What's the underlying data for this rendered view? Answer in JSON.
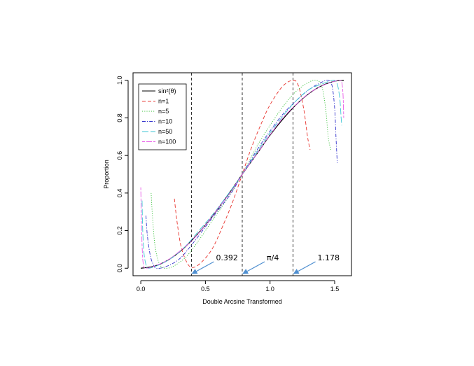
{
  "chart_data": {
    "type": "line",
    "title": "",
    "xlabel": "Double Arcsine Transformed",
    "ylabel": "Proportion",
    "xlim": [
      -0.06,
      1.63
    ],
    "ylim": [
      -0.04,
      1.04
    ],
    "x_ticks": [
      0.0,
      0.5,
      1.0,
      1.5
    ],
    "x_tick_labels": [
      "0.0",
      "0.5",
      "1.0",
      "1.5"
    ],
    "y_ticks": [
      0.0,
      0.2,
      0.4,
      0.6,
      0.8,
      1.0
    ],
    "y_tick_labels": [
      "0.0",
      "0.2",
      "0.4",
      "0.6",
      "0.8",
      "1.0"
    ],
    "grid": false,
    "legend_position": "top-left",
    "reference_lines": [
      {
        "x": 0.392,
        "style": "dashed",
        "color": "#000000"
      },
      {
        "x": 0.785,
        "style": "dashed",
        "color": "#000000"
      },
      {
        "x": 1.178,
        "style": "dashed",
        "color": "#000000"
      }
    ],
    "annotations": [
      {
        "text": "0.392",
        "points_to_x": 0.392
      },
      {
        "text": "π/4",
        "points_to_x": 0.785
      },
      {
        "text": "1.178",
        "points_to_x": 1.178
      }
    ],
    "series": [
      {
        "name": "sin²(θ)",
        "color": "#000000",
        "dash": "solid",
        "points": [
          [
            0.0,
            0.0
          ],
          [
            0.1,
            0.01
          ],
          [
            0.2,
            0.039
          ],
          [
            0.3,
            0.087
          ],
          [
            0.4,
            0.152
          ],
          [
            0.5,
            0.23
          ],
          [
            0.6,
            0.319
          ],
          [
            0.7,
            0.415
          ],
          [
            0.785,
            0.5
          ],
          [
            0.9,
            0.61
          ],
          [
            1.0,
            0.708
          ],
          [
            1.1,
            0.794
          ],
          [
            1.2,
            0.869
          ],
          [
            1.3,
            0.929
          ],
          [
            1.4,
            0.971
          ],
          [
            1.5,
            0.995
          ],
          [
            1.571,
            1.0
          ]
        ]
      },
      {
        "name": "n=1",
        "color": "#e8332d",
        "dash": "dashed",
        "points": [
          [
            0.26,
            0.37
          ],
          [
            0.28,
            0.25
          ],
          [
            0.31,
            0.12
          ],
          [
            0.35,
            0.04
          ],
          [
            0.39,
            0.005
          ],
          [
            0.45,
            0.02
          ],
          [
            0.55,
            0.1
          ],
          [
            0.65,
            0.25
          ],
          [
            0.72,
            0.37
          ],
          [
            0.785,
            0.5
          ],
          [
            0.85,
            0.63
          ],
          [
            0.92,
            0.75
          ],
          [
            1.0,
            0.87
          ],
          [
            1.1,
            0.97
          ],
          [
            1.18,
            1.0
          ],
          [
            1.22,
            0.97
          ],
          [
            1.26,
            0.85
          ],
          [
            1.29,
            0.7
          ],
          [
            1.31,
            0.63
          ]
        ]
      },
      {
        "name": "n=5",
        "color": "#3cc23c",
        "dash": "dotted",
        "points": [
          [
            0.08,
            0.4
          ],
          [
            0.09,
            0.28
          ],
          [
            0.11,
            0.12
          ],
          [
            0.14,
            0.03
          ],
          [
            0.18,
            0.0
          ],
          [
            0.25,
            0.01
          ],
          [
            0.35,
            0.06
          ],
          [
            0.45,
            0.15
          ],
          [
            0.55,
            0.25
          ],
          [
            0.65,
            0.35
          ],
          [
            0.785,
            0.5
          ],
          [
            0.9,
            0.65
          ],
          [
            1.0,
            0.76
          ],
          [
            1.1,
            0.86
          ],
          [
            1.2,
            0.94
          ],
          [
            1.3,
            0.99
          ],
          [
            1.36,
            1.0
          ],
          [
            1.4,
            0.97
          ],
          [
            1.43,
            0.85
          ],
          [
            1.45,
            0.7
          ],
          [
            1.47,
            0.63
          ]
        ]
      },
      {
        "name": "n=10",
        "color": "#3333cc",
        "dash": "dashdot",
        "points": [
          [
            0.04,
            0.28
          ],
          [
            0.05,
            0.18
          ],
          [
            0.07,
            0.08
          ],
          [
            0.09,
            0.03
          ],
          [
            0.12,
            0.0
          ],
          [
            0.2,
            0.01
          ],
          [
            0.3,
            0.05
          ],
          [
            0.4,
            0.13
          ],
          [
            0.5,
            0.22
          ],
          [
            0.6,
            0.31
          ],
          [
            0.7,
            0.4
          ],
          [
            0.785,
            0.5
          ],
          [
            0.9,
            0.63
          ],
          [
            1.0,
            0.73
          ],
          [
            1.1,
            0.82
          ],
          [
            1.2,
            0.89
          ],
          [
            1.3,
            0.95
          ],
          [
            1.4,
            0.99
          ],
          [
            1.45,
            1.0
          ],
          [
            1.48,
            0.97
          ],
          [
            1.5,
            0.85
          ],
          [
            1.51,
            0.7
          ],
          [
            1.52,
            0.56
          ]
        ]
      },
      {
        "name": "n=50",
        "color": "#3cc6d4",
        "dash": "longdash",
        "points": [
          [
            0.01,
            0.36
          ],
          [
            0.015,
            0.2
          ],
          [
            0.025,
            0.08
          ],
          [
            0.04,
            0.02
          ],
          [
            0.06,
            0.0
          ],
          [
            0.15,
            0.02
          ],
          [
            0.25,
            0.06
          ],
          [
            0.35,
            0.12
          ],
          [
            0.45,
            0.2
          ],
          [
            0.55,
            0.28
          ],
          [
            0.65,
            0.37
          ],
          [
            0.785,
            0.5
          ],
          [
            0.9,
            0.62
          ],
          [
            1.0,
            0.72
          ],
          [
            1.1,
            0.81
          ],
          [
            1.2,
            0.89
          ],
          [
            1.3,
            0.95
          ],
          [
            1.4,
            0.98
          ],
          [
            1.49,
            1.0
          ],
          [
            1.52,
            0.98
          ],
          [
            1.54,
            0.9
          ],
          [
            1.55,
            0.8
          ],
          [
            1.555,
            0.76
          ]
        ]
      },
      {
        "name": "n=100",
        "color": "#e85ce8",
        "dash": "twodash",
        "points": [
          [
            0.0,
            0.43
          ],
          [
            0.005,
            0.24
          ],
          [
            0.012,
            0.09
          ],
          [
            0.02,
            0.02
          ],
          [
            0.035,
            0.0
          ],
          [
            0.1,
            0.01
          ],
          [
            0.2,
            0.04
          ],
          [
            0.3,
            0.09
          ],
          [
            0.4,
            0.15
          ],
          [
            0.5,
            0.23
          ],
          [
            0.6,
            0.32
          ],
          [
            0.7,
            0.41
          ],
          [
            0.785,
            0.5
          ],
          [
            0.9,
            0.61
          ],
          [
            1.0,
            0.71
          ],
          [
            1.1,
            0.8
          ],
          [
            1.2,
            0.87
          ],
          [
            1.3,
            0.93
          ],
          [
            1.4,
            0.97
          ],
          [
            1.5,
            0.995
          ],
          [
            1.54,
            1.0
          ],
          [
            1.555,
            0.99
          ],
          [
            1.565,
            0.92
          ],
          [
            1.57,
            0.8
          ]
        ]
      }
    ]
  }
}
